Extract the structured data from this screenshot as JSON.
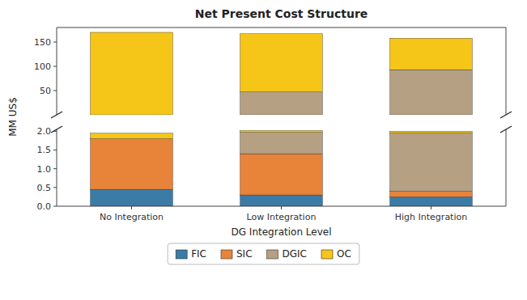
{
  "chart_data": [
    {
      "type": "bar",
      "title": "Net Present Cost Structure",
      "ylabel": "MM US$",
      "categories": [
        null,
        null,
        null
      ],
      "series": [
        {
          "name": "FIC",
          "color": "#3a7ca5",
          "values": [
            0,
            0,
            0
          ]
        },
        {
          "name": "SIC",
          "color": "#e8833a",
          "values": [
            0,
            0,
            0
          ]
        },
        {
          "name": "DGIC",
          "color": "#b5a084",
          "values": [
            0,
            47,
            93
          ]
        },
        {
          "name": "OC",
          "color": "#f5c518",
          "values": [
            170,
            120,
            65
          ]
        }
      ],
      "stacked": true,
      "legend": "bottom",
      "ylim": [
        0,
        180
      ],
      "yticks": [
        50,
        100,
        150
      ]
    },
    {
      "type": "bar",
      "xlabel": "DG Integration Level",
      "categories": [
        "No Integration",
        "Low Integration",
        "High Integration"
      ],
      "series": [
        {
          "color": "#3a7ca5",
          "values": [
            0.45,
            0.3,
            0.25
          ]
        },
        {
          "color": "#e8833a",
          "values": [
            1.35,
            1.1,
            0.15
          ]
        },
        {
          "color": "#b5a084",
          "values": [
            0.0,
            0.57,
            1.55
          ]
        },
        {
          "color": "#f5c518",
          "values": [
            0.15,
            0.05,
            0.05
          ]
        }
      ],
      "stacked": true,
      "ylim": [
        0,
        2.05
      ],
      "yticks": [
        {
          "value": 0.0,
          "label": "0.0"
        },
        0.5,
        {
          "value": 1.0,
          "label": "1.0"
        },
        1.5,
        {
          "value": 2.0,
          "label": "2.0"
        }
      ]
    }
  ]
}
